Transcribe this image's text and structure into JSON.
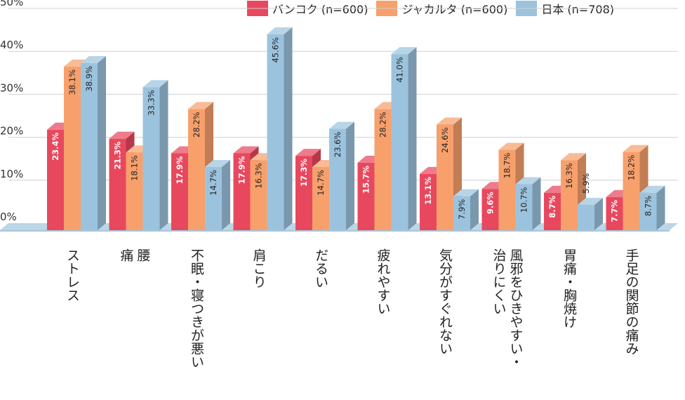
{
  "chart_data": {
    "type": "bar",
    "title": "",
    "xlabel": "",
    "ylabel": "",
    "ylim": [
      0,
      50
    ],
    "y_ticks": [
      "0%",
      "10%",
      "20%",
      "30%",
      "40%",
      "50%"
    ],
    "legend_position": "top-right",
    "categories": [
      [
        "ストレス"
      ],
      [
        "腰",
        "痛"
      ],
      [
        "不眠・寝つきが悪い"
      ],
      [
        "肩こり"
      ],
      [
        "だるい"
      ],
      [
        "疲れやすい"
      ],
      [
        "気分がすぐれない"
      ],
      [
        "風邪をひきやすい・",
        "治りにくい"
      ],
      [
        "胃痛・胸焼け"
      ],
      [
        "手足の関節の痛み"
      ]
    ],
    "series": [
      {
        "name": "バンコク (n=600)",
        "color": "#e8485e",
        "values": [
          23.4,
          21.3,
          17.9,
          17.9,
          17.3,
          15.7,
          13.1,
          9.6,
          8.7,
          7.7
        ],
        "labels": [
          "23.4%",
          "21.3%",
          "17.9%",
          "17.9%",
          "17.3%",
          "15.7%",
          "13.1%",
          "9.6%",
          "8.7%",
          "7.7%"
        ]
      },
      {
        "name": "ジャカルタ (n=600)",
        "color": "#f7a06c",
        "values": [
          38.1,
          18.1,
          28.2,
          16.3,
          14.7,
          28.2,
          24.6,
          18.7,
          16.3,
          18.2
        ],
        "labels": [
          "38.1%",
          "18.1%",
          "28.2%",
          "16.3%",
          "14.7%",
          "28.2%",
          "24.6%",
          "18.7%",
          "16.3%",
          "18.2%"
        ]
      },
      {
        "name": "日本 (n=708)",
        "color": "#9cc3de",
        "values": [
          38.9,
          33.3,
          14.7,
          45.6,
          23.6,
          41.0,
          7.9,
          10.7,
          5.9,
          8.7
        ],
        "labels": [
          "38.9%",
          "33.3%",
          "14.7%",
          "45.6%",
          "23.6%",
          "41.0%",
          "7.9%",
          "10.7%",
          "5.9%",
          "8.7%"
        ]
      }
    ]
  }
}
